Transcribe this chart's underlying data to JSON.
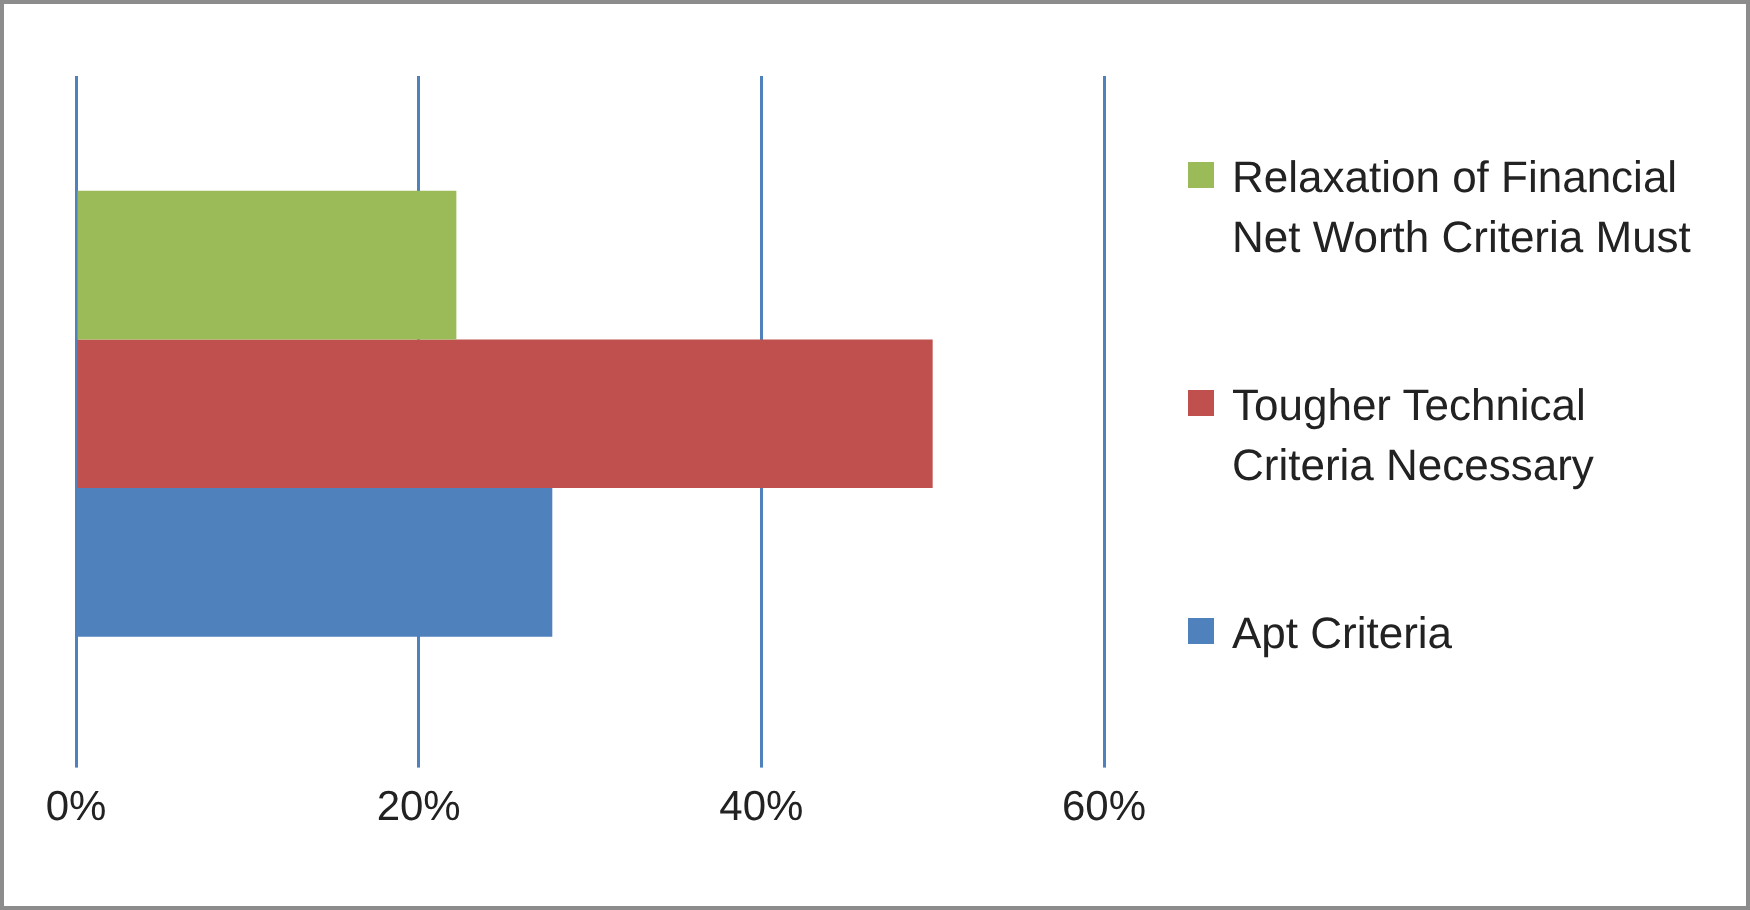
{
  "chart_data": {
    "type": "bar",
    "orientation": "horizontal",
    "categories": [
      null
    ],
    "series": [
      {
        "name": "Relaxation of Financial Net Worth Criteria Must",
        "color": "#9bbb59",
        "values": [
          22.2
        ]
      },
      {
        "name": "Tougher Technical Criteria Necessary",
        "color": "#c0504d",
        "values": [
          50
        ]
      },
      {
        "name": "Apt Criteria",
        "color": "#4f81bd",
        "values": [
          27.8
        ]
      }
    ],
    "xlim": [
      0,
      60
    ],
    "xticks": [
      {
        "value": 0,
        "label": "0%"
      },
      {
        "value": 20,
        "label": "20%"
      },
      {
        "value": 40,
        "label": "40%"
      },
      {
        "value": 60,
        "label": "60%"
      }
    ],
    "grid": "x",
    "legend": "right"
  }
}
